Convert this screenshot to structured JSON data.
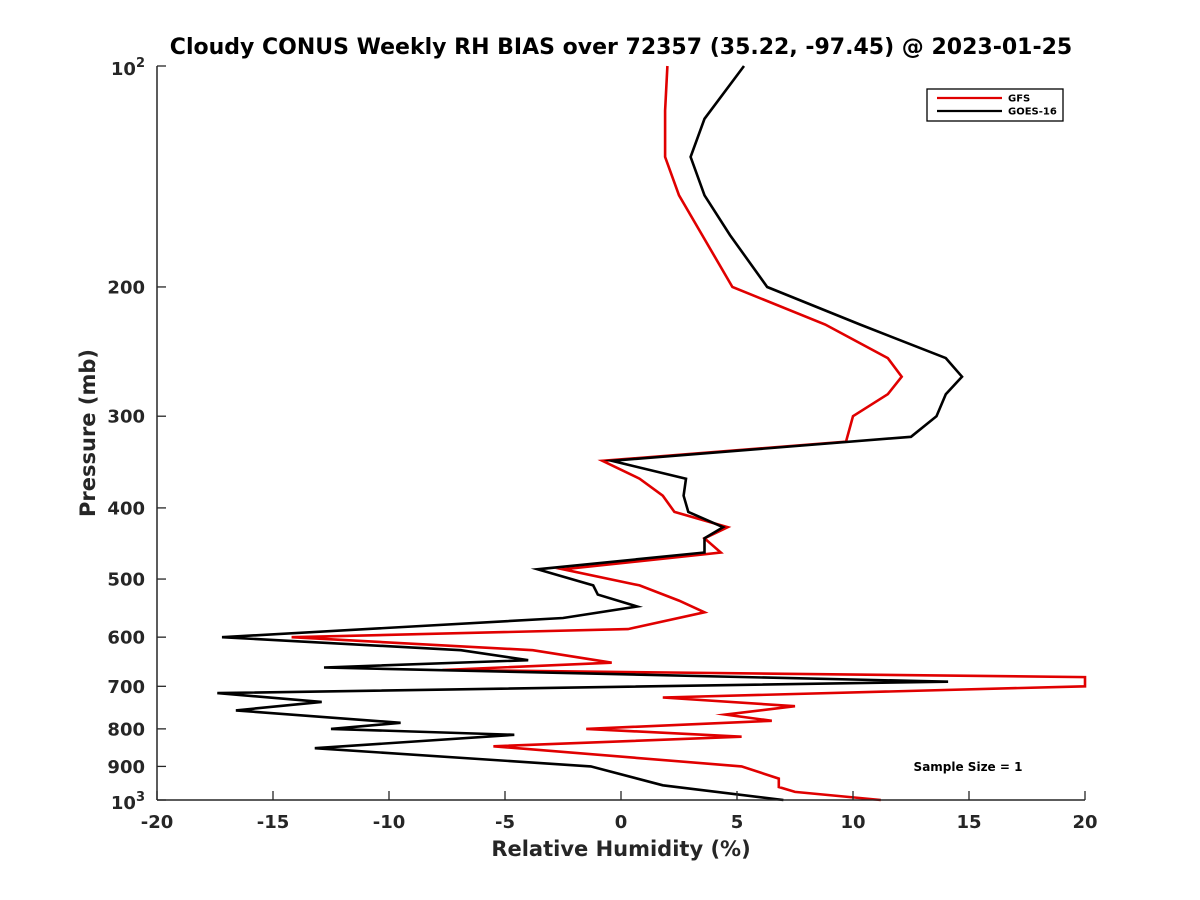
{
  "chart_data": {
    "type": "line",
    "title": "Cloudy CONUS Weekly RH BIAS over 72357 (35.22, -97.45) @ 2023-01-25",
    "xlabel": "Relative Humidity (%)",
    "ylabel": "Pressure (mb)",
    "xlim": [
      -20,
      20
    ],
    "ylim": [
      100,
      1000
    ],
    "y_scale": "log",
    "y_reversed": true,
    "grid": false,
    "legend_position": "top-right",
    "x_ticks": [
      "-20",
      "-15",
      "-10",
      "-5",
      "0",
      "5",
      "10",
      "15",
      "20"
    ],
    "y_ticks": [
      {
        "value": 100,
        "base": "10",
        "exp": "2"
      },
      {
        "value": 200,
        "label": "200"
      },
      {
        "value": 300,
        "label": "300"
      },
      {
        "value": 400,
        "label": "400"
      },
      {
        "value": 500,
        "label": "500"
      },
      {
        "value": 600,
        "label": "600"
      },
      {
        "value": 700,
        "label": "700"
      },
      {
        "value": 800,
        "label": "800"
      },
      {
        "value": 900,
        "label": "900"
      },
      {
        "value": 1000,
        "base": "10",
        "exp": "3"
      }
    ],
    "annotation": "Sample Size = 1",
    "series": [
      {
        "name": "GFS",
        "color": "#e00000",
        "points": [
          [
            2.0,
            100
          ],
          [
            1.9,
            115
          ],
          [
            1.9,
            133
          ],
          [
            2.5,
            150
          ],
          [
            3.5,
            170
          ],
          [
            4.8,
            200
          ],
          [
            8.8,
            225
          ],
          [
            11.5,
            250
          ],
          [
            12.1,
            265
          ],
          [
            11.5,
            280
          ],
          [
            10.0,
            300
          ],
          [
            9.7,
            325
          ],
          [
            -0.8,
            345
          ],
          [
            0.8,
            365
          ],
          [
            1.8,
            385
          ],
          [
            2.3,
            405
          ],
          [
            4.6,
            425
          ],
          [
            3.6,
            440
          ],
          [
            4.3,
            460
          ],
          [
            -2.5,
            485
          ],
          [
            0.8,
            510
          ],
          [
            2.5,
            535
          ],
          [
            3.6,
            555
          ],
          [
            0.3,
            585
          ],
          [
            -14.2,
            600
          ],
          [
            -3.8,
            625
          ],
          [
            -0.4,
            650
          ],
          [
            -7.7,
            665
          ],
          [
            20.0,
            680
          ],
          [
            20.0,
            700
          ],
          [
            1.8,
            725
          ],
          [
            7.5,
            745
          ],
          [
            4.5,
            765
          ],
          [
            6.5,
            780
          ],
          [
            -1.5,
            800
          ],
          [
            5.2,
            820
          ],
          [
            -5.5,
            845
          ],
          [
            5.2,
            900
          ],
          [
            6.8,
            935
          ],
          [
            6.8,
            960
          ],
          [
            7.5,
            975
          ],
          [
            11.2,
            1000
          ]
        ]
      },
      {
        "name": "GOES-16",
        "color": "#000000",
        "points": [
          [
            5.3,
            100
          ],
          [
            3.6,
            118
          ],
          [
            3.0,
            133
          ],
          [
            3.6,
            150
          ],
          [
            4.7,
            170
          ],
          [
            6.3,
            200
          ],
          [
            10.3,
            225
          ],
          [
            14.0,
            250
          ],
          [
            14.7,
            265
          ],
          [
            14.0,
            280
          ],
          [
            13.6,
            300
          ],
          [
            12.5,
            320
          ],
          [
            -0.4,
            345
          ],
          [
            2.8,
            365
          ],
          [
            2.7,
            385
          ],
          [
            2.9,
            405
          ],
          [
            4.4,
            425
          ],
          [
            3.6,
            440
          ],
          [
            3.6,
            460
          ],
          [
            -3.6,
            485
          ],
          [
            -1.2,
            510
          ],
          [
            -1.0,
            525
          ],
          [
            0.7,
            545
          ],
          [
            -2.5,
            565
          ],
          [
            -17.2,
            600
          ],
          [
            -6.9,
            625
          ],
          [
            -4.0,
            645
          ],
          [
            -12.8,
            660
          ],
          [
            14.1,
            690
          ],
          [
            -17.4,
            715
          ],
          [
            -12.9,
            735
          ],
          [
            -16.6,
            755
          ],
          [
            -9.5,
            785
          ],
          [
            -12.5,
            800
          ],
          [
            -4.6,
            815
          ],
          [
            -13.2,
            850
          ],
          [
            -1.3,
            900
          ],
          [
            1.8,
            955
          ],
          [
            7.0,
            1000
          ]
        ]
      }
    ]
  }
}
